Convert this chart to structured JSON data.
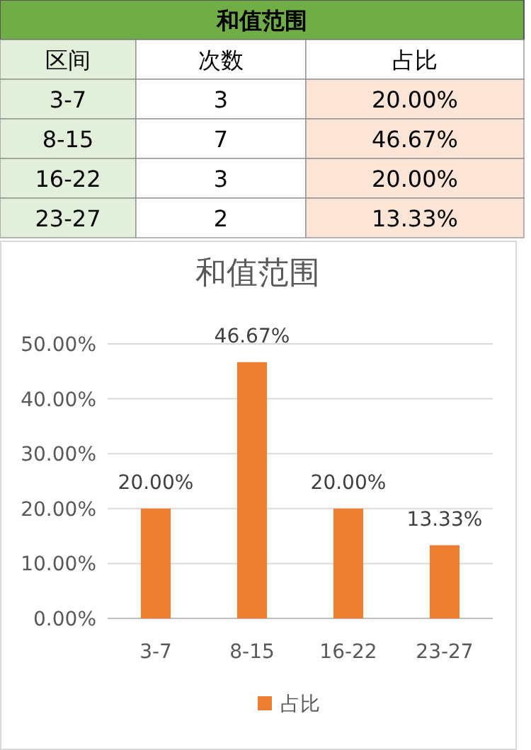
{
  "chart_data": [
    {
      "type": "other",
      "title": "和值范围",
      "annotations": [
        "区间",
        "次数",
        "占比",
        "3-7",
        "3",
        "20.00%",
        "8-15",
        "7",
        "46.67%",
        "16-22",
        "3",
        "20.00%",
        "23-27",
        "2",
        "13.33%"
      ]
    },
    {
      "type": "bar",
      "title": "和值范围",
      "categories": [
        "3-7",
        "8-15",
        "16-22",
        "23-27"
      ],
      "series": [
        {
          "name": "占比",
          "color": "#ed7d31",
          "values": [
            20,
            46.67,
            20,
            13.33
          ],
          "value_labels": [
            "20.00%",
            "46.67%",
            "20.00%",
            "13.33%"
          ]
        }
      ],
      "ylim": [
        0,
        50
      ],
      "yticks": [
        {
          "value": 0,
          "label": "0.00%"
        },
        {
          "value": 10,
          "label": "10.00%"
        },
        {
          "value": 20,
          "label": "20.00%"
        },
        {
          "value": 30,
          "label": "30.00%"
        },
        {
          "value": 40,
          "label": "40.00%"
        },
        {
          "value": 50,
          "label": "50.00%"
        }
      ],
      "grid": "y",
      "legend": "bottom"
    }
  ]
}
